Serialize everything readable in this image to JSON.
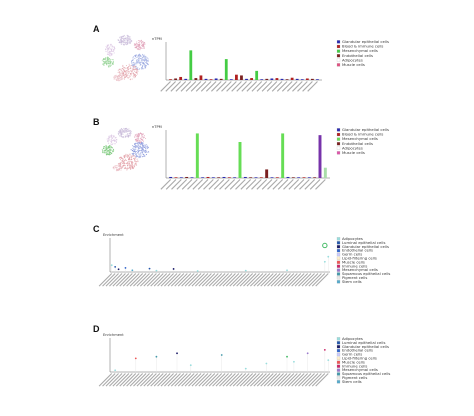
{
  "panels": [
    {
      "letter": "A",
      "ylabel": "nTPM",
      "yticks": [],
      "xticks": []
    },
    {
      "letter": "B",
      "ylabel": "nTPM",
      "yticks": [],
      "xticks": []
    },
    {
      "letter": "C",
      "ylabel": "Enrichment",
      "yticks": [],
      "xticks": []
    },
    {
      "letter": "D",
      "ylabel": "Enrichment",
      "yticks": [],
      "xticks": []
    }
  ],
  "legend_A": [
    {
      "label": "Glandular epithelial cells",
      "color": "#2a2ab0"
    },
    {
      "label": "Blood & immune cells",
      "color": "#b02020"
    },
    {
      "label": "Mesenchymal cells",
      "color": "#44cc44"
    },
    {
      "label": "Endothelial cells",
      "color": "#7a2020"
    },
    {
      "label": "Adipocytes",
      "color": "#ffffff"
    },
    {
      "label": "Muscle cells",
      "color": "#e05080"
    }
  ],
  "legend_B": [
    {
      "label": "Glandular epithelial cells",
      "color": "#2a2ab0"
    },
    {
      "label": "Blood & immune cells",
      "color": "#b02020"
    },
    {
      "label": "Mesenchymal cells",
      "color": "#66dd55"
    },
    {
      "label": "Endothelial cells",
      "color": "#7a2020"
    },
    {
      "label": "Adipocytes",
      "color": "#ffffff"
    },
    {
      "label": "Muscle cells",
      "color": "#dd55aa"
    }
  ],
  "legend_C": [
    {
      "label": "Adipocytes",
      "color": "#99dddd"
    },
    {
      "label": "Luminal epithelial cells",
      "color": "#2255aa"
    },
    {
      "label": "Glandular epithelial cells",
      "color": "#1a1a66"
    },
    {
      "label": "Endothelial cells",
      "color": "#3366cc"
    },
    {
      "label": "Germ cells",
      "color": "#ccccff"
    },
    {
      "label": "Lipid-filtering cells",
      "color": "#ffeecc"
    },
    {
      "label": "Muscle cells",
      "color": "#ee5555"
    },
    {
      "label": "Immune cells",
      "color": "#cc2266"
    },
    {
      "label": "Mesenchymal cells",
      "color": "#9977cc"
    },
    {
      "label": "Squamous epithelial cells",
      "color": "#4499aa"
    },
    {
      "label": "Pigment cells",
      "color": "#e8e8e8"
    },
    {
      "label": "Stem cells",
      "color": "#55aacc"
    }
  ],
  "legend_D": [
    {
      "label": "Adipocytes",
      "color": "#99dddd"
    },
    {
      "label": "Luminal epithelial cells",
      "color": "#2255aa"
    },
    {
      "label": "Glandular epithelial cells",
      "color": "#1a1a66"
    },
    {
      "label": "Endothelial cells",
      "color": "#3366cc"
    },
    {
      "label": "Germ cells",
      "color": "#ccccff"
    },
    {
      "label": "Lipid-filtering cells",
      "color": "#ffeecc"
    },
    {
      "label": "Muscle cells",
      "color": "#ee5555"
    },
    {
      "label": "Immune cells",
      "color": "#cc2266"
    },
    {
      "label": "Mesenchymal cells",
      "color": "#9977cc"
    },
    {
      "label": "Squamous epithelial cells",
      "color": "#4499aa"
    },
    {
      "label": "Pigment cells",
      "color": "#e8e8e8"
    },
    {
      "label": "Stem cells",
      "color": "#55aacc"
    }
  ],
  "chart_data": [
    {
      "type": "bar",
      "panel": "A",
      "ylabel": "nTPM",
      "ylim": [
        0,
        100
      ],
      "values": [
        2,
        4,
        8,
        3,
        78,
        5,
        12,
        3,
        2,
        4,
        3,
        55,
        2,
        14,
        12,
        3,
        5,
        24,
        2,
        3,
        4,
        5,
        3,
        2,
        6,
        3,
        2,
        4,
        3,
        2
      ],
      "colors": [
        "#b02020",
        "#7a2020",
        "#b02020",
        "#2a2ab0",
        "#44cc44",
        "#7a2020",
        "#b02020",
        "#2a2ab0",
        "#b02020",
        "#2a2ab0",
        "#7a2020",
        "#44cc44",
        "#2a2ab0",
        "#b02020",
        "#7a2020",
        "#2a2ab0",
        "#b02020",
        "#44cc44",
        "#2a2ab0",
        "#7a2020",
        "#2a2ab0",
        "#b02020",
        "#2a2ab0",
        "#7a2020",
        "#b02020",
        "#2a2ab0",
        "#2a2ab0",
        "#b02020",
        "#7a2020",
        "#2a2ab0"
      ]
    },
    {
      "type": "bar",
      "panel": "B",
      "ylabel": "nTPM",
      "ylim": [
        0,
        140
      ],
      "values": [
        3,
        2,
        2,
        3,
        2,
        130,
        2,
        3,
        2,
        2,
        3,
        2,
        2,
        105,
        3,
        2,
        2,
        2,
        25,
        2,
        2,
        130,
        3,
        2,
        2,
        2,
        2,
        2,
        125,
        30
      ],
      "colors": [
        "#2a2ab0",
        "#b02020",
        "#2a2ab0",
        "#7a2020",
        "#2a2ab0",
        "#66dd55",
        "#2a2ab0",
        "#b02020",
        "#2a2ab0",
        "#7a2020",
        "#2a2ab0",
        "#b02020",
        "#2a2ab0",
        "#66dd55",
        "#2a2ab0",
        "#7a2020",
        "#2a2ab0",
        "#b02020",
        "#7a2020",
        "#2a2ab0",
        "#b02020",
        "#66dd55",
        "#2a2ab0",
        "#7a2020",
        "#2a2ab0",
        "#b02020",
        "#2a2ab0",
        "#7a2020",
        "#7733aa",
        "#aaddaa"
      ]
    },
    {
      "type": "scatter",
      "panel": "C",
      "ylabel": "Enrichment",
      "ylim": [
        0,
        1
      ],
      "points": [
        {
          "x": 1,
          "y": 0.2,
          "color": "#99dddd"
        },
        {
          "x": 2,
          "y": 0.15,
          "color": "#2255aa"
        },
        {
          "x": 3,
          "y": 0.08,
          "color": "#1a1a66"
        },
        {
          "x": 5,
          "y": 0.12,
          "color": "#3366cc"
        },
        {
          "x": 7,
          "y": 0.05,
          "color": "#55aacc"
        },
        {
          "x": 12,
          "y": 0.1,
          "color": "#2255aa"
        },
        {
          "x": 14,
          "y": 0.04,
          "color": "#99dddd"
        },
        {
          "x": 19,
          "y": 0.09,
          "color": "#1a1a66"
        },
        {
          "x": 26,
          "y": 0.03,
          "color": "#99dddd"
        },
        {
          "x": 40,
          "y": 0.04,
          "color": "#99dddd"
        },
        {
          "x": 52,
          "y": 0.05,
          "color": "#99dddd"
        },
        {
          "x": 63,
          "y": 0.78,
          "color": "#44bb66",
          "ring": true
        },
        {
          "x": 63,
          "y": 0.3,
          "color": "#99dddd"
        },
        {
          "x": 64,
          "y": 0.45,
          "color": "#99dddd"
        }
      ]
    },
    {
      "type": "scatter",
      "panel": "D",
      "ylabel": "Enrichment",
      "ylim": [
        0,
        1
      ],
      "points": [
        {
          "x": 2,
          "y": 0.05,
          "color": "#99dddd"
        },
        {
          "x": 8,
          "y": 0.4,
          "color": "#ee5555"
        },
        {
          "x": 14,
          "y": 0.45,
          "color": "#4499aa"
        },
        {
          "x": 20,
          "y": 0.55,
          "color": "#1a1a66"
        },
        {
          "x": 24,
          "y": 0.2,
          "color": "#99dddd"
        },
        {
          "x": 33,
          "y": 0.5,
          "color": "#4499aa"
        },
        {
          "x": 40,
          "y": 0.1,
          "color": "#99dddd"
        },
        {
          "x": 46,
          "y": 0.25,
          "color": "#99dddd"
        },
        {
          "x": 52,
          "y": 0.45,
          "color": "#44bb66"
        },
        {
          "x": 54,
          "y": 0.3,
          "color": "#99dddd"
        },
        {
          "x": 58,
          "y": 0.55,
          "color": "#9977cc"
        },
        {
          "x": 63,
          "y": 0.65,
          "color": "#cc2266"
        },
        {
          "x": 64,
          "y": 0.35,
          "color": "#99dddd"
        }
      ]
    }
  ]
}
